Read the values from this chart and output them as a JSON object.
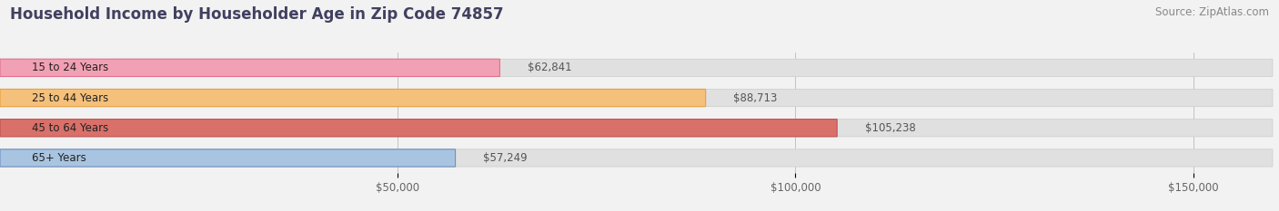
{
  "title": "Household Income by Householder Age in Zip Code 74857",
  "source": "Source: ZipAtlas.com",
  "categories": [
    "15 to 24 Years",
    "25 to 44 Years",
    "45 to 64 Years",
    "65+ Years"
  ],
  "values": [
    62841,
    88713,
    105238,
    57249
  ],
  "bar_colors": [
    "#f2a0b4",
    "#f5c07a",
    "#d9706a",
    "#a8c4e0"
  ],
  "bar_edge_colors": [
    "#e07090",
    "#e8a040",
    "#c05050",
    "#7090c0"
  ],
  "value_labels": [
    "$62,841",
    "$88,713",
    "$105,238",
    "$57,249"
  ],
  "xlim": [
    0,
    160000
  ],
  "xticks": [
    50000,
    100000,
    150000
  ],
  "xticklabels": [
    "$50,000",
    "$100,000",
    "$150,000"
  ],
  "bg_color": "#f2f2f2",
  "bar_bg_color": "#e0e0e0",
  "bar_bg_edge_color": "#cccccc",
  "title_color": "#404060",
  "title_fontsize": 12,
  "source_fontsize": 8.5,
  "tick_fontsize": 8.5,
  "bar_height": 0.58,
  "bar_label_fontsize": 8.5,
  "value_label_fontsize": 8.5
}
